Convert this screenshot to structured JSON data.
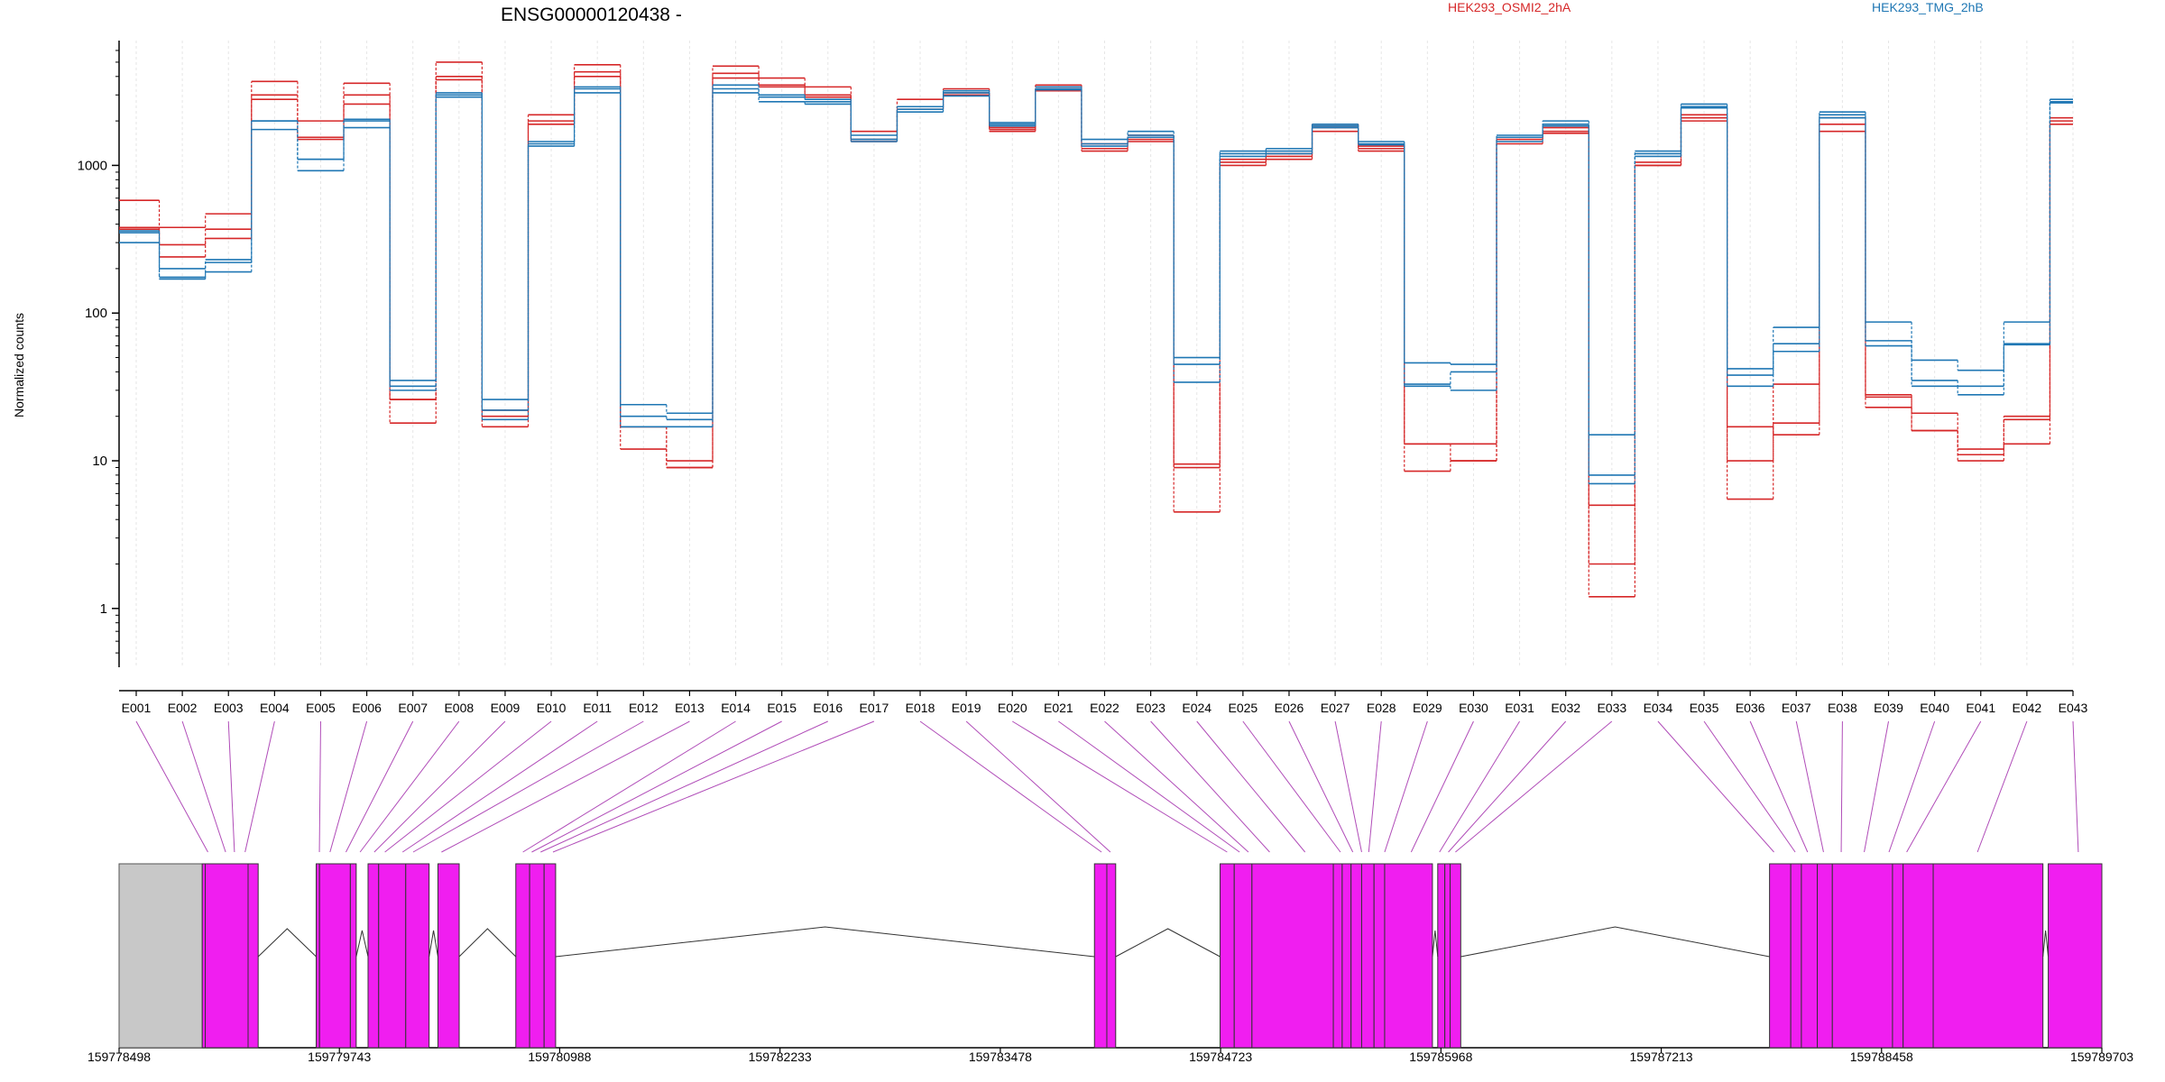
{
  "title": "ENSG00000120438 -",
  "ylabel": "Normalized counts",
  "legend": [
    {
      "name": "HEK293_OSMI2_2hA",
      "color": "#d62728"
    },
    {
      "name": "HEK293_TMG_2hB",
      "color": "#1f77b4"
    }
  ],
  "colors": {
    "exon": "#f01ef0",
    "intron": "#c8c8c8",
    "connector": "#b04cb8",
    "grid": "#e6e6e6"
  },
  "chart_data": {
    "type": "line",
    "yscale": "log",
    "ylim": [
      0.4,
      7000
    ],
    "yticks": [
      1,
      10,
      100,
      1000
    ],
    "ytick_labels": [
      "1",
      "10",
      "100",
      "1000"
    ],
    "categories": [
      "E001",
      "E002",
      "E003",
      "E004",
      "E005",
      "E006",
      "E007",
      "E008",
      "E009",
      "E010",
      "E011",
      "E012",
      "E013",
      "E014",
      "E015",
      "E016",
      "E017",
      "E018",
      "E019",
      "E020",
      "E021",
      "E022",
      "E023",
      "E024",
      "E025",
      "E026",
      "E027",
      "E028",
      "E029",
      "E030",
      "E031",
      "E032",
      "E033",
      "E034",
      "E035",
      "E036",
      "E037",
      "E038",
      "E039",
      "E040",
      "E041",
      "E042",
      "E043"
    ],
    "series": [
      {
        "group": 0,
        "values": [
          580,
          380,
          470,
          3700,
          2000,
          3600,
          26,
          5000,
          22,
          2200,
          4800,
          12,
          9,
          4700,
          3900,
          3400,
          1700,
          2800,
          3300,
          1800,
          3500,
          1300,
          1600,
          9,
          1100,
          1200,
          1900,
          1350,
          13,
          13,
          1550,
          1800,
          1.2,
          1050,
          2200,
          10,
          33,
          2100,
          28,
          21,
          12,
          20,
          2000
        ]
      },
      {
        "group": 0,
        "values": [
          380,
          290,
          370,
          3000,
          1500,
          3000,
          18,
          4000,
          17,
          2000,
          4300,
          17,
          10,
          4200,
          3500,
          3000,
          1500,
          2500,
          3100,
          1750,
          3300,
          1400,
          1500,
          4.5,
          1050,
          1150,
          1800,
          1300,
          8.5,
          10,
          1500,
          1700,
          2,
          1000,
          2100,
          5.5,
          18,
          1900,
          27,
          16,
          11,
          19,
          1900
        ]
      },
      {
        "group": 0,
        "values": [
          370,
          240,
          320,
          2800,
          1550,
          2600,
          26,
          3800,
          20,
          1900,
          4000,
          17,
          9,
          3900,
          3400,
          2900,
          1450,
          2400,
          3000,
          1700,
          3200,
          1250,
          1450,
          9.5,
          1000,
          1100,
          1700,
          1250,
          13,
          10,
          1400,
          1650,
          5,
          1000,
          2000,
          17,
          15,
          1700,
          23,
          16,
          10,
          13,
          2100
        ]
      },
      {
        "group": 1,
        "values": [
          360,
          200,
          230,
          2000,
          1100,
          2050,
          35,
          3100,
          26,
          1450,
          3400,
          24,
          21,
          3500,
          3000,
          2800,
          1600,
          2500,
          3200,
          1950,
          3400,
          1500,
          1700,
          50,
          1250,
          1300,
          1900,
          1450,
          46,
          45,
          1600,
          2000,
          15,
          1250,
          2600,
          42,
          80,
          2300,
          87,
          48,
          41,
          87,
          2800
        ]
      },
      {
        "group": 1,
        "values": [
          350,
          175,
          220,
          2000,
          1100,
          2000,
          32,
          3000,
          22,
          1400,
          3300,
          20,
          19,
          3300,
          2900,
          2700,
          1500,
          2400,
          3100,
          1900,
          3300,
          1400,
          1600,
          45,
          1200,
          1250,
          1850,
          1400,
          33,
          40,
          1550,
          1900,
          8,
          1200,
          2500,
          38,
          62,
          2200,
          65,
          35,
          32,
          62,
          2700
        ]
      },
      {
        "group": 1,
        "values": [
          300,
          170,
          190,
          1750,
          920,
          1800,
          30,
          2900,
          19,
          1350,
          3100,
          17,
          17,
          3100,
          2700,
          2600,
          1450,
          2300,
          2950,
          1850,
          3250,
          1350,
          1550,
          34,
          1150,
          1200,
          1800,
          1380,
          32,
          30,
          1450,
          1850,
          7,
          1150,
          2450,
          32,
          55,
          2100,
          60,
          32,
          28,
          61,
          2650
        ]
      }
    ],
    "gene_coords": {
      "start": 159778498,
      "end": 159789703,
      "ticks": [
        159778498,
        159779743,
        159780988,
        159782233,
        159783478,
        159784723,
        159785968,
        159787213,
        159788458,
        159789703
      ],
      "tick_labels": [
        "159778498",
        "159779743",
        "159780988",
        "159782233",
        "159783478",
        "159784723",
        "159785968",
        "159787213",
        "159788458",
        "159789703"
      ]
    },
    "grey_regions": [
      [
        159778498,
        159778968
      ],
      [
        159779965,
        159780118
      ]
    ],
    "exons": [
      [
        159778968,
        159778985
      ],
      [
        159778985,
        159779227
      ],
      [
        159779227,
        159779284
      ],
      [
        159779612,
        159779631
      ],
      [
        159779631,
        159779805
      ],
      [
        159779805,
        159779838
      ],
      [
        159779905,
        159779965
      ],
      [
        159779965,
        159780118
      ],
      [
        159780118,
        159780250
      ],
      [
        159780300,
        159780420
      ],
      [
        159780740,
        159780818
      ],
      [
        159780818,
        159780900
      ],
      [
        159780900,
        159780965
      ],
      [
        159784010,
        159784080
      ],
      [
        159784080,
        159784130
      ],
      [
        159784720,
        159784800
      ],
      [
        159784800,
        159784900
      ],
      [
        159784900,
        159785360
      ],
      [
        159785360,
        159785410
      ],
      [
        159785410,
        159785460
      ],
      [
        159785460,
        159785520
      ],
      [
        159785520,
        159785590
      ],
      [
        159785590,
        159785650
      ],
      [
        159785650,
        159785920
      ],
      [
        159785950,
        159785990
      ],
      [
        159785990,
        159786020
      ],
      [
        159786020,
        159786080
      ],
      [
        159787825,
        159787945
      ],
      [
        159787945,
        159788005
      ],
      [
        159788005,
        159788095
      ],
      [
        159788095,
        159788180
      ],
      [
        159788180,
        159788520
      ],
      [
        159788520,
        159788580
      ],
      [
        159788580,
        159788750
      ],
      [
        159788750,
        159789370
      ],
      [
        159789400,
        159789703
      ]
    ],
    "introns": [
      [
        159779284,
        159779612
      ],
      [
        159779838,
        159779905
      ],
      [
        159780250,
        159780300
      ],
      [
        159780420,
        159780740
      ],
      [
        159780965,
        159784010
      ],
      [
        159784130,
        159784720
      ],
      [
        159785920,
        159785950
      ],
      [
        159786080,
        159787825
      ],
      [
        159789370,
        159789400
      ]
    ],
    "exon_map": [
      159779000,
      159779100,
      159779150,
      159779210,
      159779630,
      159779690,
      159779780,
      159779860,
      159779940,
      159780000,
      159780100,
      159780160,
      159780320,
      159780780,
      159780830,
      159780880,
      159780950,
      159784050,
      159784100,
      159784760,
      159784830,
      159784880,
      159785000,
      159785200,
      159785400,
      159785470,
      159785520,
      159785560,
      159785650,
      159785800,
      159785960,
      159786010,
      159786050,
      159787850,
      159787970,
      159788040,
      159788130,
      159788230,
      159788360,
      159788500,
      159788600,
      159789000,
      159789570
    ]
  }
}
